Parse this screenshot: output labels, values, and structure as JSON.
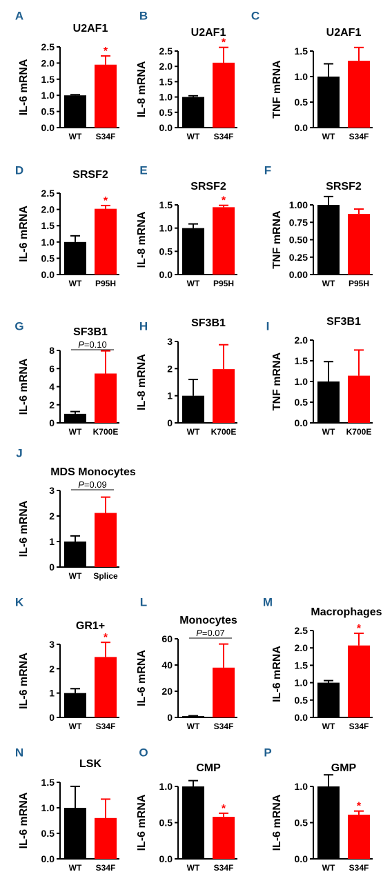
{
  "colors": {
    "wt": "#000000",
    "mutant": "#ff0000",
    "panel_letter": "#1f5f8f",
    "significance": "#ff0000"
  },
  "chart_data": [
    {
      "letter": "A",
      "type": "bar",
      "title": "U2AF1",
      "ylabel": "IL-6 mRNA",
      "categories": [
        "WT",
        "S34F"
      ],
      "values": [
        1.0,
        1.95
      ],
      "errors": [
        0.02,
        0.27
      ],
      "ylim": [
        0,
        2.5
      ],
      "yticks": [
        "0.0",
        "0.5",
        "1.0",
        "1.5",
        "2.0",
        "2.5"
      ],
      "significance": "*"
    },
    {
      "letter": "B",
      "type": "bar",
      "title": "U2AF1",
      "ylabel": "IL-8 mRNA",
      "categories": [
        "WT",
        "S34F"
      ],
      "values": [
        1.0,
        2.12
      ],
      "errors": [
        0.04,
        0.5
      ],
      "ylim": [
        0,
        2.5
      ],
      "yticks": [
        "0.0",
        "0.5",
        "1.0",
        "1.5",
        "2.0",
        "2.5"
      ],
      "significance": "*"
    },
    {
      "letter": "C",
      "type": "bar",
      "title": "U2AF1",
      "ylabel": "TNF mRNA",
      "categories": [
        "WT",
        "S34F"
      ],
      "values": [
        1.0,
        1.31
      ],
      "errors": [
        0.25,
        0.26
      ],
      "ylim": [
        0,
        1.5
      ],
      "yticks": [
        "0.0",
        "0.5",
        "1.0",
        "1.5"
      ]
    },
    {
      "letter": "D",
      "type": "bar",
      "title": "SRSF2",
      "ylabel": "IL-6 mRNA",
      "categories": [
        "WT",
        "P95H"
      ],
      "values": [
        1.0,
        2.02
      ],
      "errors": [
        0.19,
        0.1
      ],
      "ylim": [
        0,
        2.5
      ],
      "yticks": [
        "0.0",
        "0.5",
        "1.0",
        "1.5",
        "2.0",
        "2.5"
      ],
      "significance": "*"
    },
    {
      "letter": "E",
      "type": "bar",
      "title": "SRSF2",
      "ylabel": "IL-8 mRNA",
      "categories": [
        "WT",
        "P95H"
      ],
      "values": [
        1.0,
        1.45
      ],
      "errors": [
        0.09,
        0.04
      ],
      "ylim": [
        0,
        1.5
      ],
      "yticks": [
        "0.0",
        "0.5",
        "1.0",
        "1.5"
      ],
      "significance": "*"
    },
    {
      "letter": "F",
      "type": "bar",
      "title": "SRSF2",
      "ylabel": "TNF mRNA",
      "categories": [
        "WT",
        "P95H"
      ],
      "values": [
        1.0,
        0.87
      ],
      "errors": [
        0.12,
        0.07
      ],
      "ylim": [
        0,
        1.0
      ],
      "yticks": [
        "0.00",
        "0.25",
        "0.50",
        "0.75",
        "1.00"
      ]
    },
    {
      "letter": "G",
      "type": "bar",
      "title": "SF3B1",
      "ylabel": "IL-6 mRNA",
      "categories": [
        "WT",
        "K700E"
      ],
      "values": [
        1.0,
        5.45
      ],
      "errors": [
        0.25,
        2.5
      ],
      "ylim": [
        0,
        8
      ],
      "yticks": [
        "0",
        "2",
        "4",
        "6",
        "8"
      ],
      "p_value": "=0.10"
    },
    {
      "letter": "H",
      "type": "bar",
      "title": "SF3B1",
      "ylabel": "IL-8 mRNA",
      "categories": [
        "WT",
        "K700E"
      ],
      "values": [
        1.0,
        1.98
      ],
      "errors": [
        0.6,
        0.9
      ],
      "ylim": [
        0,
        3
      ],
      "yticks": [
        "0",
        "1",
        "2",
        "3"
      ]
    },
    {
      "letter": "I",
      "type": "bar",
      "title": "SF3B1",
      "ylabel": "TNF mRNA",
      "categories": [
        "WT",
        "K700E"
      ],
      "values": [
        1.0,
        1.14
      ],
      "errors": [
        0.48,
        0.62
      ],
      "ylim": [
        0,
        2.0
      ],
      "yticks": [
        "0.0",
        "0.5",
        "1.0",
        "1.5",
        "2.0"
      ]
    },
    {
      "letter": "J",
      "type": "bar",
      "title": "MDS Monocytes",
      "ylabel": "IL-6 mRNA",
      "categories": [
        "WT",
        "Splice"
      ],
      "values": [
        1.0,
        2.12
      ],
      "errors": [
        0.22,
        0.62
      ],
      "ylim": [
        0,
        3
      ],
      "yticks": [
        "0",
        "1",
        "2",
        "3"
      ],
      "p_value": "=0.09"
    },
    {
      "letter": "K",
      "type": "bar",
      "title": "GR1+",
      "ylabel": "IL-6 mRNA",
      "categories": [
        "WT",
        "S34F"
      ],
      "values": [
        1.0,
        2.48
      ],
      "errors": [
        0.18,
        0.6
      ],
      "ylim": [
        0,
        3
      ],
      "yticks": [
        "0",
        "1",
        "2",
        "3"
      ],
      "significance": "*"
    },
    {
      "letter": "L",
      "type": "bar",
      "title": "Monocytes",
      "ylabel": "IL-6 mRNA",
      "categories": [
        "WT",
        "S34F"
      ],
      "values": [
        1.0,
        38.0
      ],
      "errors": [
        0.3,
        18.0
      ],
      "ylim": [
        0,
        60
      ],
      "yticks": [
        "0",
        "20",
        "40",
        "60"
      ],
      "p_value": "=0.07"
    },
    {
      "letter": "M",
      "type": "bar",
      "title": "Macrophages",
      "ylabel": "IL-6 mRNA",
      "categories": [
        "WT",
        "S34F"
      ],
      "values": [
        1.0,
        2.07
      ],
      "errors": [
        0.06,
        0.35
      ],
      "ylim": [
        0,
        2.5
      ],
      "yticks": [
        "0.0",
        "0.5",
        "1.0",
        "1.5",
        "2.0",
        "2.5"
      ],
      "significance": "*"
    },
    {
      "letter": "N",
      "type": "bar",
      "title": "LSK",
      "ylabel": "IL-6 mRNA",
      "categories": [
        "WT",
        "S34F"
      ],
      "values": [
        1.0,
        0.8
      ],
      "errors": [
        0.42,
        0.37
      ],
      "ylim": [
        0,
        1.5
      ],
      "yticks": [
        "0.0",
        "0.5",
        "1.0",
        "1.5"
      ]
    },
    {
      "letter": "O",
      "type": "bar",
      "title": "CMP",
      "ylabel": "IL-6 mRNA",
      "categories": [
        "WT",
        "S34F"
      ],
      "values": [
        1.0,
        0.58
      ],
      "errors": [
        0.08,
        0.05
      ],
      "ylim": [
        0,
        1.0
      ],
      "yticks": [
        "0.0",
        "0.5",
        "1.0"
      ],
      "significance": "*"
    },
    {
      "letter": "P",
      "type": "bar",
      "title": "GMP",
      "ylabel": "IL-6 mRNA",
      "categories": [
        "WT",
        "S34F"
      ],
      "values": [
        1.0,
        0.61
      ],
      "errors": [
        0.16,
        0.05
      ],
      "ylim": [
        0,
        1.0
      ],
      "yticks": [
        "0.0",
        "0.5",
        "1.0"
      ],
      "significance": "*"
    }
  ]
}
